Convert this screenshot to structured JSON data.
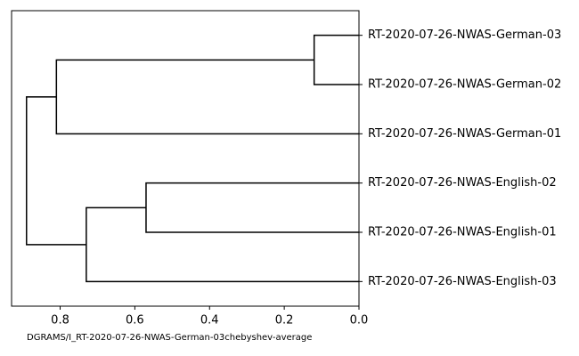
{
  "chart_data": {
    "type": "dendrogram",
    "xlabel": "DGRAMS/I_RT-2020-07-26-NWAS-German-03chebyshev-average",
    "leaves": [
      "RT-2020-07-26-NWAS-English-03",
      "RT-2020-07-26-NWAS-English-01",
      "RT-2020-07-26-NWAS-English-02",
      "RT-2020-07-26-NWAS-German-01",
      "RT-2020-07-26-NWAS-German-02",
      "RT-2020-07-26-NWAS-German-03"
    ],
    "merges": [
      {
        "children": [
          4,
          5
        ],
        "height": 0.12
      },
      {
        "children": [
          1,
          2
        ],
        "height": 0.57
      },
      {
        "children": [
          0,
          7
        ],
        "height": 0.73
      },
      {
        "children": [
          3,
          6
        ],
        "height": 0.81
      },
      {
        "children": [
          8,
          9
        ],
        "height": 0.89
      }
    ],
    "color": "#000000",
    "xlim": [
      0.93,
      0
    ],
    "xticks": [
      0.8,
      0.6,
      0.4,
      0.2,
      {
        "value": 0,
        "label": "0.0"
      }
    ]
  }
}
